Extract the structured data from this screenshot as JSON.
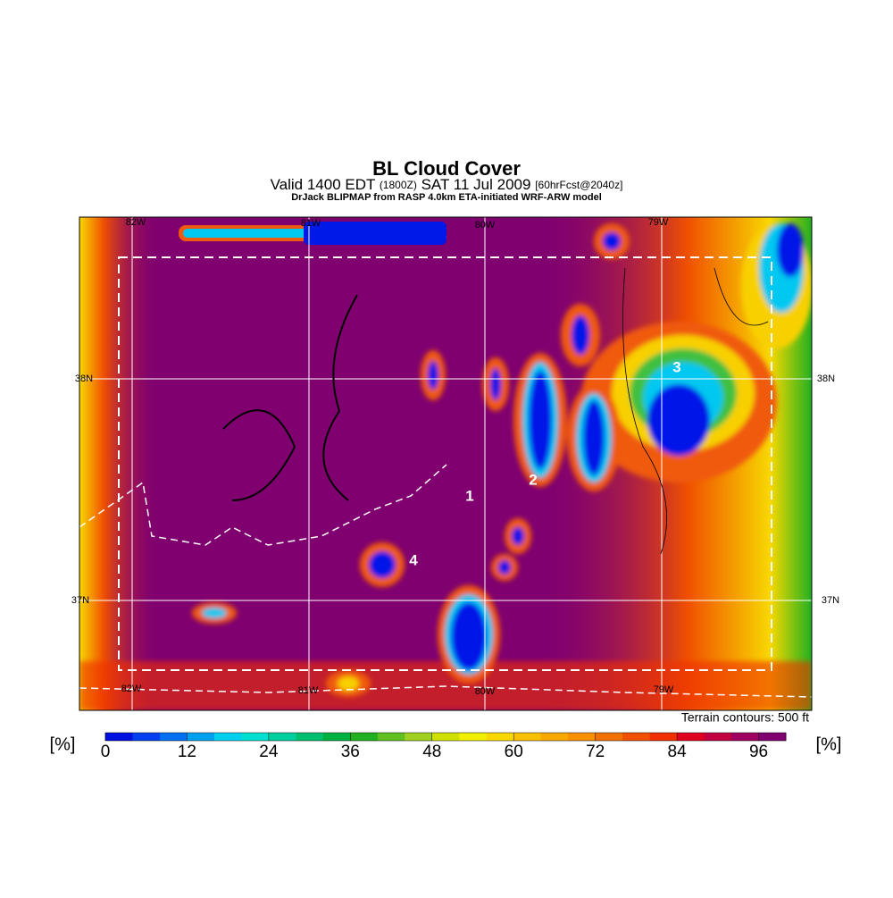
{
  "title": "BL Cloud Cover",
  "subtitle": {
    "valid": "Valid 1400 EDT",
    "utc": "(1800Z)",
    "date": "SAT 11 Jul 2009",
    "forecast": "[60hrFcst@2040z]"
  },
  "credit": "DrJack BLIPMAP from RASP 4.0km ETA-initiated WRF-ARW model",
  "map": {
    "lon_labels_top": [
      "82W",
      "81W",
      "80W",
      "79W"
    ],
    "lon_labels_bottom": [
      "82W",
      "81W",
      "80W",
      "79W"
    ],
    "lat_labels_left": [
      "38N",
      "37N"
    ],
    "lat_labels_right": [
      "38N",
      "37N"
    ],
    "site_labels": [
      "1",
      "2",
      "3",
      "4"
    ]
  },
  "terrain_note": "Terrain contours: 500 ft",
  "colorbar": {
    "unit_label": "[%]",
    "range": [
      0,
      100
    ],
    "ticks": [
      0,
      12,
      24,
      36,
      48,
      60,
      72,
      84,
      96
    ],
    "colors": [
      "#0010e0",
      "#0040f0",
      "#0070f0",
      "#00a0f0",
      "#00d0f0",
      "#00e0d0",
      "#00d0a0",
      "#00c070",
      "#00b040",
      "#20b020",
      "#60c020",
      "#a0d020",
      "#d0e000",
      "#f0f000",
      "#f8d800",
      "#f8c000",
      "#f8a800",
      "#f89000",
      "#f07000",
      "#f05000",
      "#f03000",
      "#e00020",
      "#c00040",
      "#a00060",
      "#800070"
    ]
  }
}
